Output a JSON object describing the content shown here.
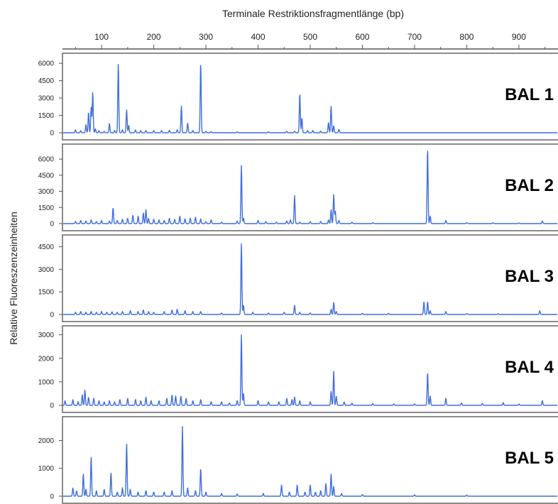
{
  "chart_data": {
    "type": "line",
    "title": "Terminale Restriktionsfragmentlänge (bp)",
    "xlabel": "Terminale Restriktionsfragmentlänge (bp)",
    "ylabel": "Relative Fluoreszenzeinheiten",
    "xlim": [
      25,
      975
    ],
    "x_ticks": [
      100,
      200,
      300,
      400,
      500,
      600,
      700,
      800,
      900
    ],
    "series_color": "#3f6fdc",
    "grid": false,
    "panels": [
      {
        "name": "BAL 1",
        "ylim": [
          -250,
          6500
        ],
        "y_ticks": [
          0,
          1500,
          3000,
          4500,
          6000
        ],
        "peaks": [
          [
            50,
            250
          ],
          [
            60,
            180
          ],
          [
            70,
            700
          ],
          [
            75,
            1800
          ],
          [
            80,
            2200
          ],
          [
            83,
            3500
          ],
          [
            88,
            350
          ],
          [
            95,
            180
          ],
          [
            105,
            120
          ],
          [
            115,
            800
          ],
          [
            125,
            200
          ],
          [
            132,
            6000
          ],
          [
            140,
            250
          ],
          [
            148,
            2000
          ],
          [
            152,
            650
          ],
          [
            165,
            250
          ],
          [
            175,
            200
          ],
          [
            185,
            200
          ],
          [
            200,
            180
          ],
          [
            215,
            200
          ],
          [
            230,
            220
          ],
          [
            245,
            250
          ],
          [
            253,
            2300
          ],
          [
            265,
            850
          ],
          [
            275,
            200
          ],
          [
            290,
            6100
          ],
          [
            300,
            120
          ],
          [
            310,
            100
          ],
          [
            360,
            80
          ],
          [
            420,
            80
          ],
          [
            455,
            120
          ],
          [
            470,
            120
          ],
          [
            480,
            3400
          ],
          [
            484,
            1300
          ],
          [
            495,
            200
          ],
          [
            505,
            200
          ],
          [
            520,
            150
          ],
          [
            535,
            900
          ],
          [
            540,
            2300
          ],
          [
            545,
            600
          ],
          [
            555,
            300
          ]
        ]
      },
      {
        "name": "BAL 2",
        "ylim": [
          -250,
          7000
        ],
        "y_ticks": [
          0,
          1500,
          3000,
          4500,
          6000
        ],
        "peaks": [
          [
            50,
            200
          ],
          [
            60,
            300
          ],
          [
            70,
            250
          ],
          [
            80,
            350
          ],
          [
            90,
            200
          ],
          [
            100,
            300
          ],
          [
            115,
            250
          ],
          [
            122,
            1500
          ],
          [
            130,
            300
          ],
          [
            140,
            400
          ],
          [
            150,
            500
          ],
          [
            160,
            800
          ],
          [
            170,
            700
          ],
          [
            180,
            1000
          ],
          [
            185,
            1300
          ],
          [
            190,
            500
          ],
          [
            200,
            400
          ],
          [
            210,
            350
          ],
          [
            220,
            300
          ],
          [
            230,
            500
          ],
          [
            240,
            400
          ],
          [
            250,
            700
          ],
          [
            260,
            450
          ],
          [
            270,
            500
          ],
          [
            280,
            600
          ],
          [
            290,
            450
          ],
          [
            300,
            200
          ],
          [
            310,
            350
          ],
          [
            330,
            150
          ],
          [
            360,
            250
          ],
          [
            368,
            5400
          ],
          [
            372,
            500
          ],
          [
            400,
            300
          ],
          [
            415,
            200
          ],
          [
            435,
            150
          ],
          [
            455,
            250
          ],
          [
            462,
            350
          ],
          [
            470,
            2600
          ],
          [
            480,
            150
          ],
          [
            500,
            200
          ],
          [
            520,
            200
          ],
          [
            535,
            350
          ],
          [
            540,
            1300
          ],
          [
            545,
            2700
          ],
          [
            548,
            1200
          ],
          [
            555,
            300
          ],
          [
            580,
            150
          ],
          [
            620,
            100
          ],
          [
            725,
            7000
          ],
          [
            730,
            700
          ],
          [
            760,
            300
          ],
          [
            800,
            100
          ],
          [
            850,
            80
          ],
          [
            900,
            60
          ],
          [
            945,
            250
          ]
        ]
      },
      {
        "name": "BAL 3",
        "ylim": [
          -250,
          5000
        ],
        "y_ticks": [
          0,
          1500,
          3000,
          4500
        ],
        "peaks": [
          [
            50,
            150
          ],
          [
            60,
            200
          ],
          [
            70,
            150
          ],
          [
            80,
            200
          ],
          [
            90,
            150
          ],
          [
            100,
            200
          ],
          [
            110,
            150
          ],
          [
            120,
            180
          ],
          [
            130,
            150
          ],
          [
            140,
            200
          ],
          [
            155,
            250
          ],
          [
            170,
            200
          ],
          [
            180,
            300
          ],
          [
            190,
            200
          ],
          [
            200,
            150
          ],
          [
            220,
            200
          ],
          [
            235,
            300
          ],
          [
            245,
            350
          ],
          [
            260,
            250
          ],
          [
            275,
            200
          ],
          [
            290,
            200
          ],
          [
            330,
            100
          ],
          [
            368,
            4700
          ],
          [
            372,
            600
          ],
          [
            390,
            150
          ],
          [
            420,
            100
          ],
          [
            450,
            150
          ],
          [
            470,
            600
          ],
          [
            480,
            150
          ],
          [
            500,
            100
          ],
          [
            540,
            350
          ],
          [
            545,
            800
          ],
          [
            550,
            200
          ],
          [
            600,
            80
          ],
          [
            650,
            80
          ],
          [
            718,
            850
          ],
          [
            725,
            850
          ],
          [
            730,
            250
          ],
          [
            760,
            200
          ],
          [
            800,
            60
          ],
          [
            860,
            50
          ],
          [
            940,
            250
          ]
        ]
      },
      {
        "name": "BAL 4",
        "ylim": [
          -150,
          3200
        ],
        "y_ticks": [
          0,
          1000,
          2000,
          3000
        ],
        "peaks": [
          [
            30,
            200
          ],
          [
            45,
            250
          ],
          [
            55,
            150
          ],
          [
            63,
            450
          ],
          [
            68,
            650
          ],
          [
            75,
            350
          ],
          [
            85,
            300
          ],
          [
            95,
            200
          ],
          [
            105,
            150
          ],
          [
            115,
            200
          ],
          [
            125,
            150
          ],
          [
            135,
            250
          ],
          [
            150,
            300
          ],
          [
            165,
            250
          ],
          [
            175,
            200
          ],
          [
            185,
            350
          ],
          [
            195,
            200
          ],
          [
            210,
            200
          ],
          [
            225,
            300
          ],
          [
            235,
            450
          ],
          [
            242,
            400
          ],
          [
            252,
            400
          ],
          [
            262,
            300
          ],
          [
            275,
            200
          ],
          [
            290,
            250
          ],
          [
            310,
            150
          ],
          [
            330,
            150
          ],
          [
            345,
            100
          ],
          [
            360,
            200
          ],
          [
            368,
            3000
          ],
          [
            372,
            500
          ],
          [
            400,
            200
          ],
          [
            420,
            150
          ],
          [
            440,
            150
          ],
          [
            455,
            300
          ],
          [
            465,
            250
          ],
          [
            470,
            350
          ],
          [
            480,
            200
          ],
          [
            500,
            150
          ],
          [
            540,
            600
          ],
          [
            545,
            1450
          ],
          [
            550,
            400
          ],
          [
            565,
            150
          ],
          [
            580,
            100
          ],
          [
            620,
            80
          ],
          [
            660,
            60
          ],
          [
            700,
            60
          ],
          [
            725,
            1400
          ],
          [
            730,
            400
          ],
          [
            760,
            300
          ],
          [
            790,
            100
          ],
          [
            830,
            80
          ],
          [
            870,
            120
          ],
          [
            900,
            60
          ],
          [
            945,
            200
          ]
        ]
      },
      {
        "name": "BAL 5",
        "ylim": [
          -150,
          2700
        ],
        "y_ticks": [
          0,
          1000,
          2000
        ],
        "peaks": [
          [
            45,
            300
          ],
          [
            52,
            200
          ],
          [
            65,
            800
          ],
          [
            70,
            250
          ],
          [
            80,
            1400
          ],
          [
            90,
            200
          ],
          [
            105,
            250
          ],
          [
            118,
            850
          ],
          [
            130,
            150
          ],
          [
            140,
            300
          ],
          [
            148,
            1900
          ],
          [
            155,
            250
          ],
          [
            170,
            150
          ],
          [
            185,
            200
          ],
          [
            200,
            150
          ],
          [
            220,
            150
          ],
          [
            235,
            200
          ],
          [
            255,
            2500
          ],
          [
            265,
            300
          ],
          [
            280,
            200
          ],
          [
            290,
            1000
          ],
          [
            300,
            150
          ],
          [
            330,
            100
          ],
          [
            360,
            80
          ],
          [
            410,
            100
          ],
          [
            445,
            400
          ],
          [
            460,
            150
          ],
          [
            475,
            400
          ],
          [
            490,
            150
          ],
          [
            500,
            400
          ],
          [
            510,
            150
          ],
          [
            520,
            200
          ],
          [
            530,
            450
          ],
          [
            540,
            800
          ],
          [
            545,
            350
          ],
          [
            560,
            100
          ],
          [
            600,
            60
          ],
          [
            700,
            50
          ],
          [
            800,
            40
          ]
        ]
      }
    ]
  }
}
